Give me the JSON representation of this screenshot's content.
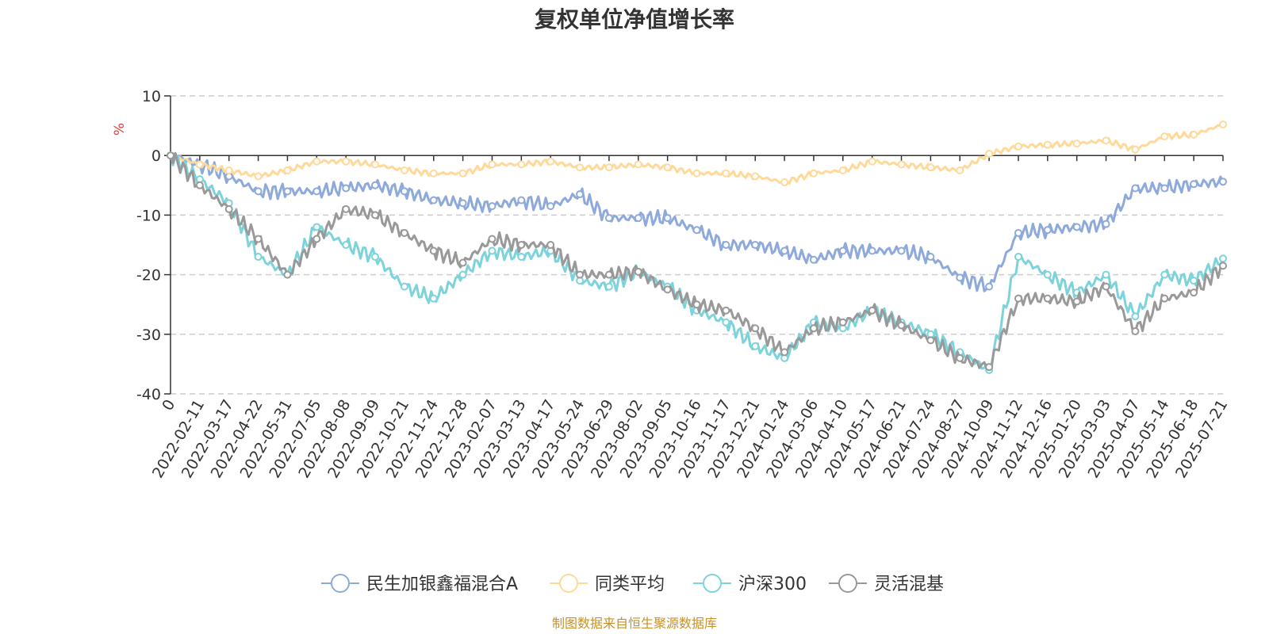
{
  "chart_data": {
    "type": "line",
    "title": "复权单位净值增长率",
    "ylabel": "%",
    "ylim": [
      -40,
      10
    ],
    "yticks": [
      10,
      0,
      -10,
      -20,
      -30,
      -40
    ],
    "grid": true,
    "legend_position": "bottom",
    "source_note": "制图数据来自恒生聚源数据库",
    "xticks": [
      "0",
      "2022-02-11",
      "2022-03-17",
      "2022-04-22",
      "2022-05-31",
      "2022-07-05",
      "2022-08-08",
      "2022-09-09",
      "2022-10-21",
      "2022-11-24",
      "2022-12-28",
      "2023-02-07",
      "2023-03-13",
      "2023-04-17",
      "2023-05-24",
      "2023-06-29",
      "2023-08-02",
      "2023-09-05",
      "2023-10-16",
      "2023-11-17",
      "2023-12-21",
      "2024-01-24",
      "2024-03-06",
      "2024-04-10",
      "2024-05-17",
      "2024-06-21",
      "2024-07-24",
      "2024-08-27",
      "2024-10-09",
      "2024-11-12",
      "2024-12-16",
      "2025-01-20",
      "2025-03-03",
      "2025-04-07",
      "2025-05-14",
      "2025-06-18",
      "2025-07-21"
    ],
    "series": [
      {
        "name": "民生加银鑫福混合A",
        "color": "#8eaadb",
        "values": [
          0,
          -1.5,
          -3.5,
          -6,
          -6,
          -6,
          -5.5,
          -5,
          -6,
          -7.5,
          -8,
          -8.5,
          -7.5,
          -8.5,
          -6.5,
          -10.5,
          -10.5,
          -10.5,
          -12.5,
          -15,
          -15,
          -16,
          -17.5,
          -16,
          -16,
          -16,
          -17,
          -20.5,
          -22,
          -13,
          -12.5,
          -12,
          -11.5,
          -5.5,
          -5.5,
          -4.8,
          -4.4
        ]
      },
      {
        "name": "同类平均",
        "color": "#ffd99a",
        "values": [
          0,
          -1.5,
          -2.5,
          -3.5,
          -2.5,
          -1,
          -1,
          -1.5,
          -2.5,
          -3,
          -3,
          -1.5,
          -1.5,
          -1,
          -2,
          -2,
          -1.5,
          -2,
          -3,
          -3,
          -3.5,
          -4.5,
          -3,
          -2.5,
          -1,
          -1.5,
          -2,
          -2.5,
          0.3,
          1.5,
          1.8,
          2,
          2.5,
          1,
          3.2,
          3.5,
          5.2
        ]
      },
      {
        "name": "沪深300",
        "color": "#7dd3db",
        "values": [
          0,
          -4,
          -8,
          -17,
          -20,
          -12,
          -15,
          -17,
          -22,
          -24,
          -20,
          -16,
          -17,
          -16,
          -21,
          -22,
          -19.5,
          -22,
          -26,
          -28,
          -32,
          -34,
          -28,
          -29,
          -26,
          -28,
          -30,
          -33,
          -36,
          -17,
          -20,
          -23,
          -20,
          -27,
          -20,
          -21,
          -17.3
        ]
      },
      {
        "name": "灵活混基",
        "color": "#999999",
        "values": [
          0,
          -5,
          -9,
          -14,
          -20,
          -14,
          -9,
          -10,
          -13,
          -16,
          -18,
          -14,
          -15,
          -15,
          -20,
          -20,
          -19.5,
          -22.5,
          -25,
          -26,
          -29,
          -33,
          -29,
          -28,
          -26,
          -28.5,
          -31,
          -34,
          -35.5,
          -24,
          -24,
          -24.5,
          -22,
          -29.5,
          -24,
          -23,
          -18.5
        ]
      }
    ]
  }
}
